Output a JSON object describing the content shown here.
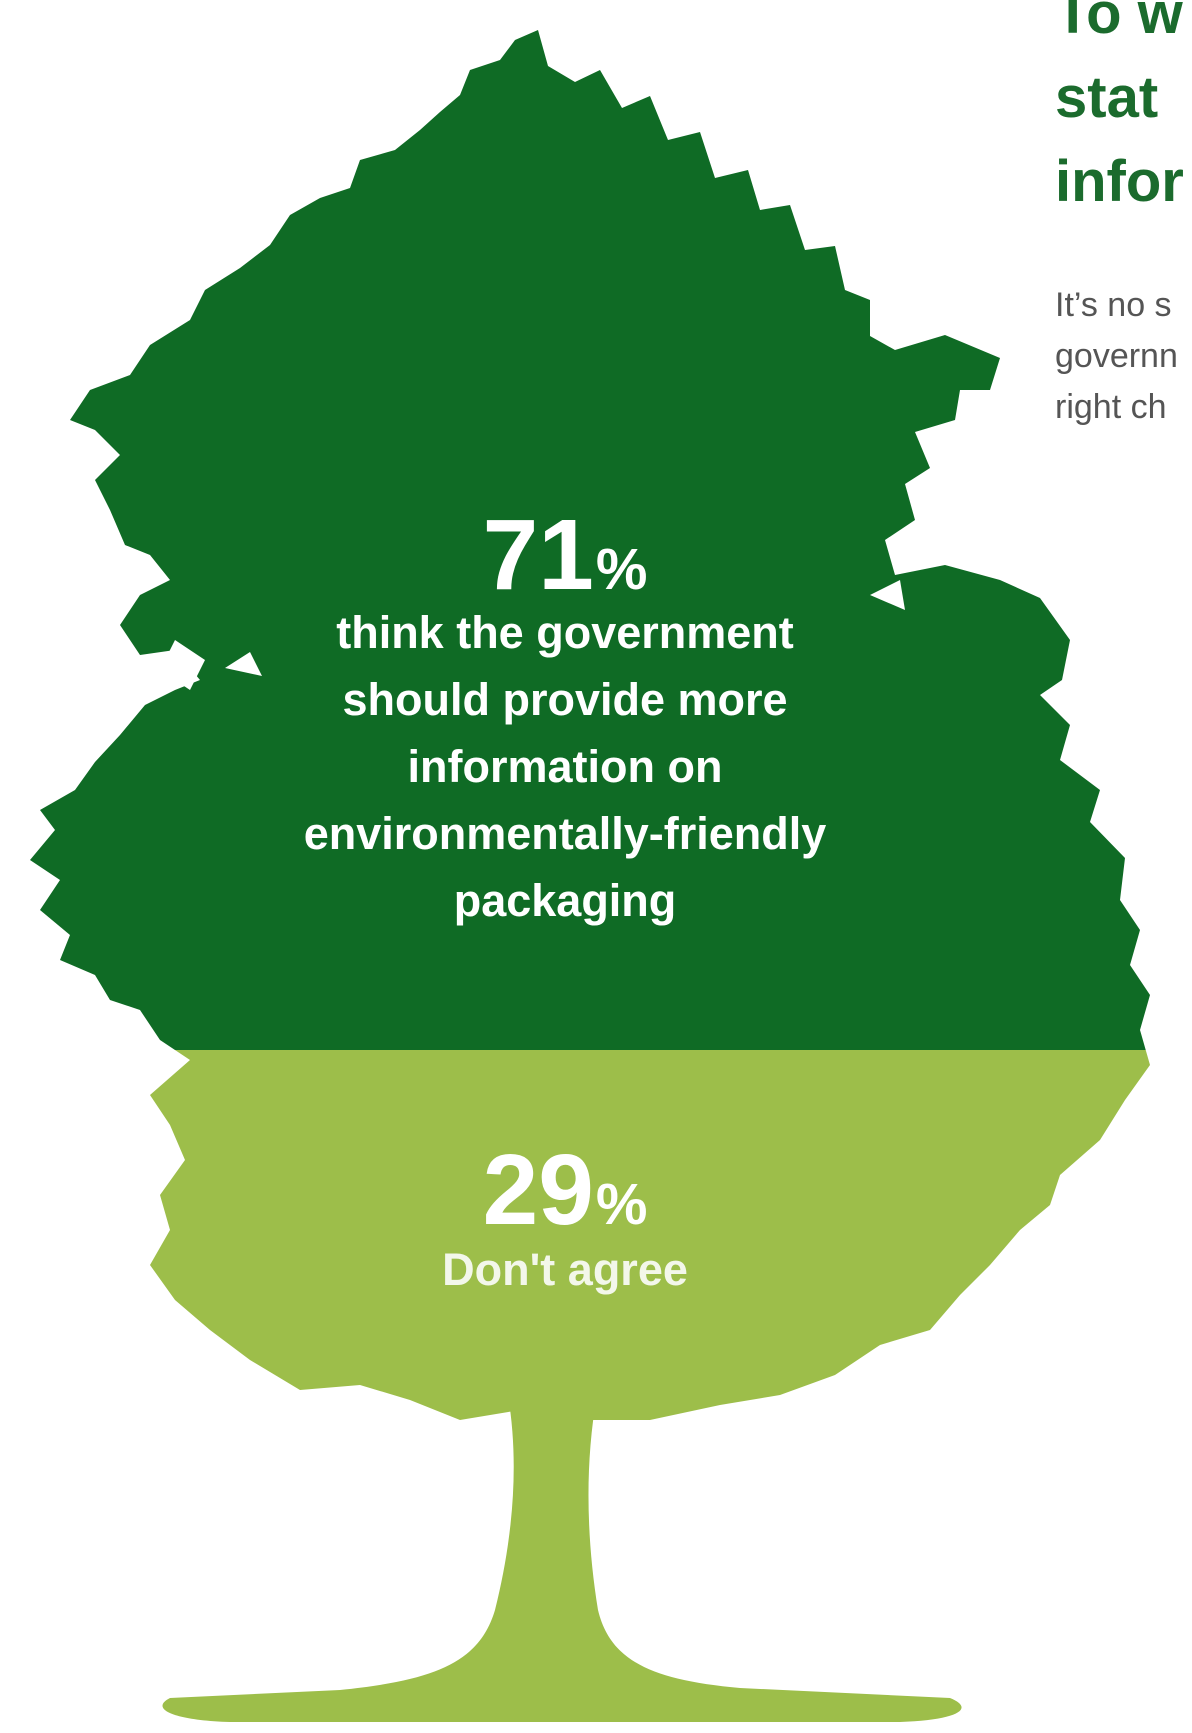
{
  "heading_lines": [
    "To w",
    "stat",
    "infor"
  ],
  "body_lines": [
    "It’s no s",
    "governn",
    "right ch"
  ],
  "chart_data": {
    "type": "pictogram",
    "segments": [
      {
        "percent": 71,
        "percent_text": "71",
        "percent_sign": "%",
        "label_lines": [
          "think the government",
          "should provide more",
          "information on",
          "environmentally-friendly",
          "packaging"
        ],
        "color": "#0f6b25"
      },
      {
        "percent": 29,
        "percent_text": "29",
        "percent_sign": "%",
        "label": "Don't agree",
        "color": "#9dbe4a"
      }
    ]
  }
}
